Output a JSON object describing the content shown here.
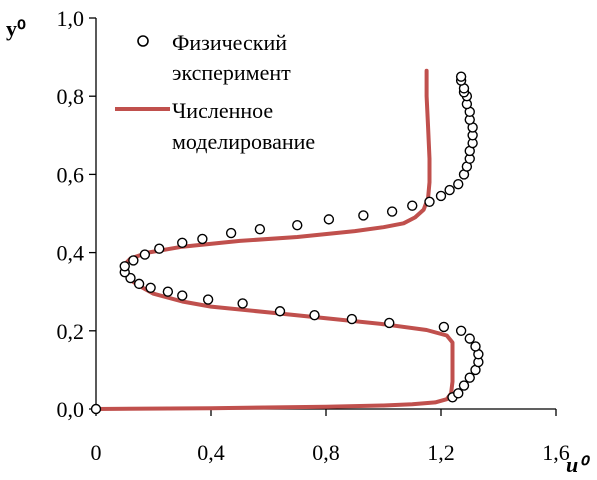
{
  "chart_data": {
    "type": "scatter",
    "xlabel": "u⁰",
    "ylabel": "y⁰",
    "xlim": [
      0,
      1.6
    ],
    "ylim": [
      0,
      1.0
    ],
    "xticks": [
      0,
      0.4,
      0.8,
      1.2,
      1.6
    ],
    "yticks": [
      0,
      0.2,
      0.4,
      0.6,
      0.8,
      1.0
    ],
    "xtick_labels": [
      "0",
      "0,4",
      "0,8",
      "1,2",
      "1,6"
    ],
    "ytick_labels": [
      "0,0",
      "0,2",
      "0,4",
      "0,6",
      "0,8",
      "1,0"
    ],
    "grid": false,
    "legend_position": "top-left",
    "series": [
      {
        "name": "Физический эксперимент",
        "kind": "markers",
        "marker": "open-circle",
        "color": "#000000",
        "x": [
          0.0,
          1.24,
          1.26,
          1.28,
          1.3,
          1.32,
          1.33,
          1.33,
          1.32,
          1.3,
          1.27,
          1.21,
          1.02,
          0.89,
          0.76,
          0.64,
          0.51,
          0.39,
          0.3,
          0.25,
          0.19,
          0.15,
          0.12,
          0.1,
          0.1,
          0.13,
          0.17,
          0.22,
          0.3,
          0.37,
          0.47,
          0.57,
          0.7,
          0.81,
          0.93,
          1.03,
          1.1,
          1.16,
          1.2,
          1.23,
          1.26,
          1.28,
          1.29,
          1.3,
          1.3,
          1.31,
          1.31,
          1.31,
          1.3,
          1.3,
          1.29,
          1.29,
          1.28,
          1.28,
          1.27,
          1.27
        ],
        "y": [
          0.0,
          0.03,
          0.04,
          0.06,
          0.08,
          0.1,
          0.12,
          0.14,
          0.16,
          0.18,
          0.2,
          0.21,
          0.22,
          0.23,
          0.24,
          0.25,
          0.27,
          0.28,
          0.29,
          0.3,
          0.31,
          0.32,
          0.335,
          0.35,
          0.365,
          0.38,
          0.395,
          0.41,
          0.425,
          0.435,
          0.45,
          0.46,
          0.47,
          0.485,
          0.495,
          0.505,
          0.52,
          0.53,
          0.545,
          0.56,
          0.575,
          0.6,
          0.62,
          0.64,
          0.66,
          0.68,
          0.7,
          0.72,
          0.74,
          0.76,
          0.78,
          0.8,
          0.81,
          0.82,
          0.84,
          0.85
        ]
      },
      {
        "name": "Численное моделирование",
        "kind": "line",
        "color": "#c0504d",
        "x": [
          0.0,
          0.4,
          0.8,
          1.0,
          1.1,
          1.18,
          1.22,
          1.235,
          1.24,
          1.24,
          1.24,
          1.24,
          1.22,
          1.15,
          1.0,
          0.8,
          0.6,
          0.4,
          0.3,
          0.2,
          0.15,
          0.12,
          0.1,
          0.1,
          0.12,
          0.18,
          0.3,
          0.5,
          0.7,
          0.9,
          1.0,
          1.07,
          1.11,
          1.14,
          1.155,
          1.16,
          1.16,
          1.155,
          1.15,
          1.15
        ],
        "y": [
          0.0,
          0.002,
          0.006,
          0.009,
          0.012,
          0.017,
          0.025,
          0.04,
          0.07,
          0.1,
          0.14,
          0.17,
          0.188,
          0.202,
          0.217,
          0.232,
          0.247,
          0.262,
          0.275,
          0.295,
          0.315,
          0.33,
          0.35,
          0.37,
          0.385,
          0.4,
          0.415,
          0.43,
          0.44,
          0.455,
          0.465,
          0.475,
          0.49,
          0.51,
          0.54,
          0.58,
          0.64,
          0.72,
          0.8,
          0.865
        ]
      }
    ]
  }
}
